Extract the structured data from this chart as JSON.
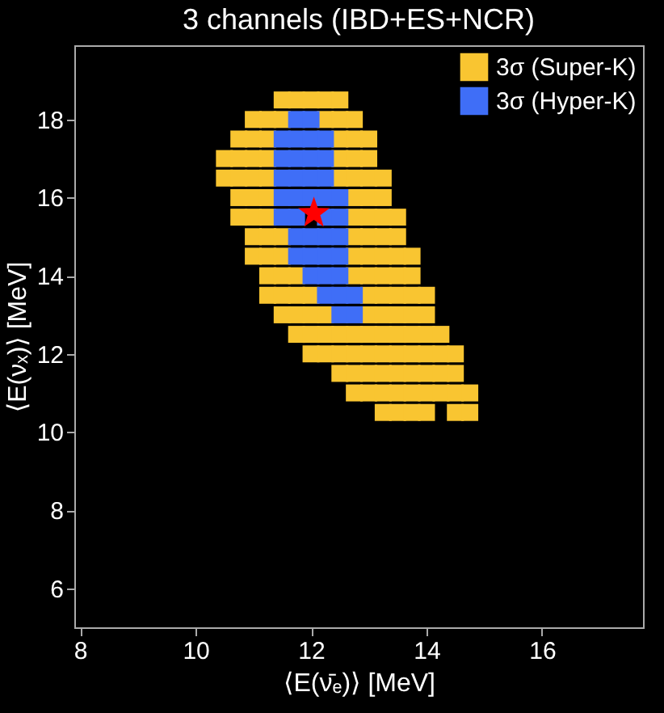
{
  "chart_data": {
    "type": "scatter",
    "title": "3 channels (IBD+ES+NCR)",
    "xlabel": "⟨E(ν̄ₑ)⟩ [MeV]",
    "ylabel": "⟨E(νₓ)⟩ [MeV]",
    "xlim": [
      7.9,
      17.75
    ],
    "ylim": [
      5,
      19.9
    ],
    "xticks": [
      8,
      10,
      12,
      14,
      16
    ],
    "yticks": [
      6,
      8,
      10,
      12,
      14,
      16,
      18
    ],
    "grid": false,
    "legend": "top right",
    "series": [
      {
        "name": "3σ (Super-K)",
        "color": "#f9c531",
        "marker": "square",
        "x": [
          11.5,
          11.75,
          12.0,
          12.25,
          12.5,
          11.0,
          11.25,
          11.5,
          12.25,
          12.5,
          12.75,
          10.75,
          11.0,
          11.25,
          12.5,
          12.75,
          13.0,
          10.5,
          10.75,
          11.0,
          11.25,
          12.5,
          12.75,
          13.0,
          10.5,
          10.75,
          11.0,
          11.25,
          12.5,
          12.75,
          13.0,
          13.25,
          10.75,
          11.0,
          11.25,
          12.75,
          13.0,
          13.25,
          10.75,
          11.0,
          11.25,
          12.75,
          13.0,
          13.25,
          13.5,
          11.0,
          11.25,
          11.5,
          12.75,
          13.0,
          13.25,
          13.5,
          11.0,
          11.25,
          11.5,
          12.75,
          13.0,
          13.25,
          13.5,
          13.75,
          11.25,
          11.5,
          11.75,
          12.75,
          13.0,
          13.25,
          13.5,
          13.75,
          11.25,
          11.5,
          11.75,
          12.0,
          13.0,
          13.25,
          13.5,
          13.75,
          14.0,
          11.5,
          11.75,
          12.0,
          12.25,
          13.0,
          13.25,
          13.5,
          13.75,
          14.0,
          11.75,
          12.0,
          12.25,
          12.5,
          12.75,
          13.0,
          13.25,
          13.5,
          13.75,
          14.0,
          14.25,
          12.0,
          12.25,
          12.5,
          12.75,
          13.0,
          13.25,
          13.5,
          13.75,
          14.0,
          14.25,
          14.5,
          12.5,
          12.75,
          13.0,
          13.25,
          13.5,
          13.75,
          14.0,
          14.25,
          14.5,
          12.75,
          13.0,
          13.25,
          13.5,
          13.75,
          14.0,
          14.25,
          14.5,
          14.75,
          13.25,
          13.5,
          13.75,
          14.0,
          14.5,
          14.75
        ],
        "values": [
          18.5,
          18.5,
          18.5,
          18.5,
          18.5,
          18,
          18,
          18,
          18,
          18,
          18,
          17.5,
          17.5,
          17.5,
          17.5,
          17.5,
          17.5,
          17,
          17,
          17,
          17,
          17,
          17,
          17,
          16.5,
          16.5,
          16.5,
          16.5,
          16.5,
          16.5,
          16.5,
          16.5,
          16,
          16,
          16,
          16,
          16,
          16,
          15.5,
          15.5,
          15.5,
          15.5,
          15.5,
          15.5,
          15.5,
          15,
          15,
          15,
          15,
          15,
          15,
          15,
          14.5,
          14.5,
          14.5,
          14.5,
          14.5,
          14.5,
          14.5,
          14.5,
          14,
          14,
          14,
          14,
          14,
          14,
          14,
          14,
          13.5,
          13.5,
          13.5,
          13.5,
          13.5,
          13.5,
          13.5,
          13.5,
          13.5,
          13,
          13,
          13,
          13,
          13,
          13,
          13,
          13,
          13,
          12.5,
          12.5,
          12.5,
          12.5,
          12.5,
          12.5,
          12.5,
          12.5,
          12.5,
          12.5,
          12.5,
          12,
          12,
          12,
          12,
          12,
          12,
          12,
          12,
          12,
          12,
          12,
          11.5,
          11.5,
          11.5,
          11.5,
          11.5,
          11.5,
          11.5,
          11.5,
          11.5,
          11,
          11,
          11,
          11,
          11,
          11,
          11,
          11,
          11,
          10.5,
          10.5,
          10.5,
          10.5,
          10.5,
          10.5
        ]
      },
      {
        "name": "3σ (Hyper-K)",
        "color": "#3f6ef7",
        "marker": "square",
        "x": [
          11.75,
          12.0,
          11.5,
          11.75,
          12.0,
          12.25,
          11.5,
          11.75,
          12.0,
          12.25,
          11.5,
          11.75,
          12.0,
          12.25,
          11.5,
          11.75,
          12.0,
          12.25,
          12.5,
          11.5,
          11.75,
          12.0,
          12.25,
          12.5,
          11.75,
          12.0,
          12.25,
          12.5,
          11.75,
          12.0,
          12.25,
          12.5,
          12.0,
          12.25,
          12.5,
          12.25,
          12.5,
          12.75,
          12.5,
          12.75
        ],
        "values": [
          18,
          18,
          17.5,
          17.5,
          17.5,
          17.5,
          17,
          17,
          17,
          17,
          16.5,
          16.5,
          16.5,
          16.5,
          16,
          16,
          16,
          16,
          16,
          15.5,
          15.5,
          null,
          15.5,
          15.5,
          15,
          15,
          15,
          15,
          14.5,
          14.5,
          14.5,
          14.5,
          14,
          14,
          14,
          13.5,
          13.5,
          13.5,
          13,
          13
        ]
      },
      {
        "color": "#ff0000",
        "marker": "star",
        "x": [
          12.05
        ],
        "values": [
          15.6
        ]
      }
    ]
  }
}
